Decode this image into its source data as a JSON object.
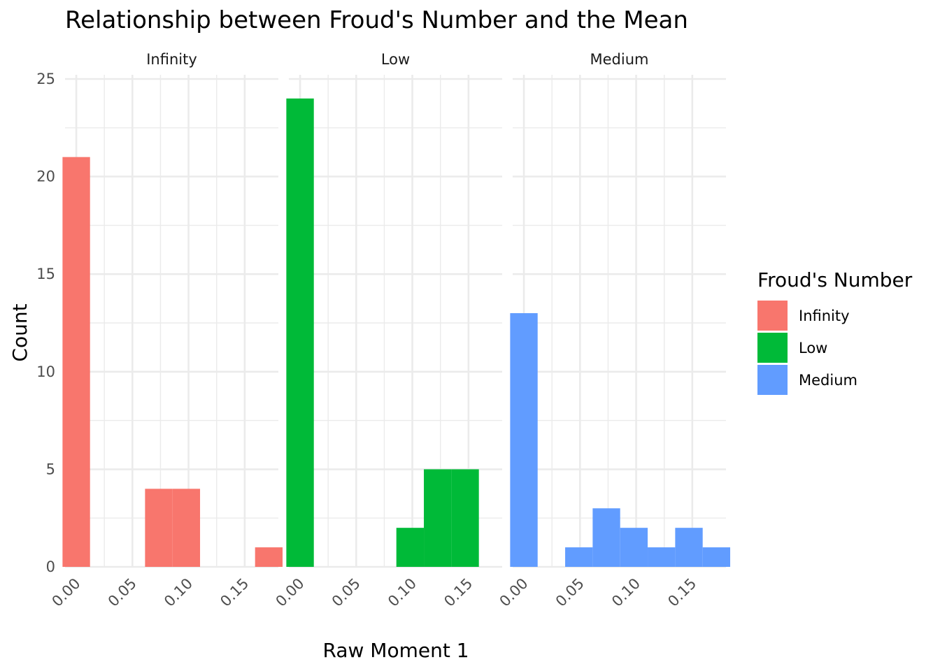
{
  "chart_data": {
    "type": "bar",
    "title": "Relationship between Froud's Number and the Mean",
    "xlabel": "Raw Moment 1",
    "ylabel": "Count",
    "ylim": [
      0,
      25
    ],
    "xlim": [
      -0.01,
      0.18
    ],
    "y_ticks": [
      "0",
      "5",
      "10",
      "15",
      "20",
      "25"
    ],
    "x_ticks": [
      "0.00",
      "0.05",
      "0.10",
      "0.15"
    ],
    "x_tick_values": [
      0.0,
      0.05,
      0.1,
      0.15
    ],
    "y_tick_values": [
      0,
      5,
      10,
      15,
      20,
      25
    ],
    "bin_width": 0.0245,
    "grid": "on",
    "legend": {
      "title": "Froud's Number",
      "position": "right",
      "entries": [
        "Infinity",
        "Low",
        "Medium"
      ]
    },
    "colors": {
      "Infinity": "#F8766D",
      "Low": "#00BA38",
      "Medium": "#619CFF"
    },
    "series": [
      {
        "name": "Infinity",
        "bins": [
          {
            "x": 0.0,
            "count": 21
          },
          {
            "x": 0.0735,
            "count": 4
          },
          {
            "x": 0.098,
            "count": 4
          },
          {
            "x": 0.1715,
            "count": 1
          }
        ]
      },
      {
        "name": "Low",
        "bins": [
          {
            "x": 0.0,
            "count": 24
          },
          {
            "x": 0.098,
            "count": 2
          },
          {
            "x": 0.1225,
            "count": 5
          },
          {
            "x": 0.147,
            "count": 5
          }
        ]
      },
      {
        "name": "Medium",
        "bins": [
          {
            "x": 0.0,
            "count": 13
          },
          {
            "x": 0.049,
            "count": 1
          },
          {
            "x": 0.0735,
            "count": 3
          },
          {
            "x": 0.098,
            "count": 2
          },
          {
            "x": 0.1225,
            "count": 1
          },
          {
            "x": 0.147,
            "count": 2
          },
          {
            "x": 0.1715,
            "count": 1
          }
        ]
      }
    ]
  }
}
